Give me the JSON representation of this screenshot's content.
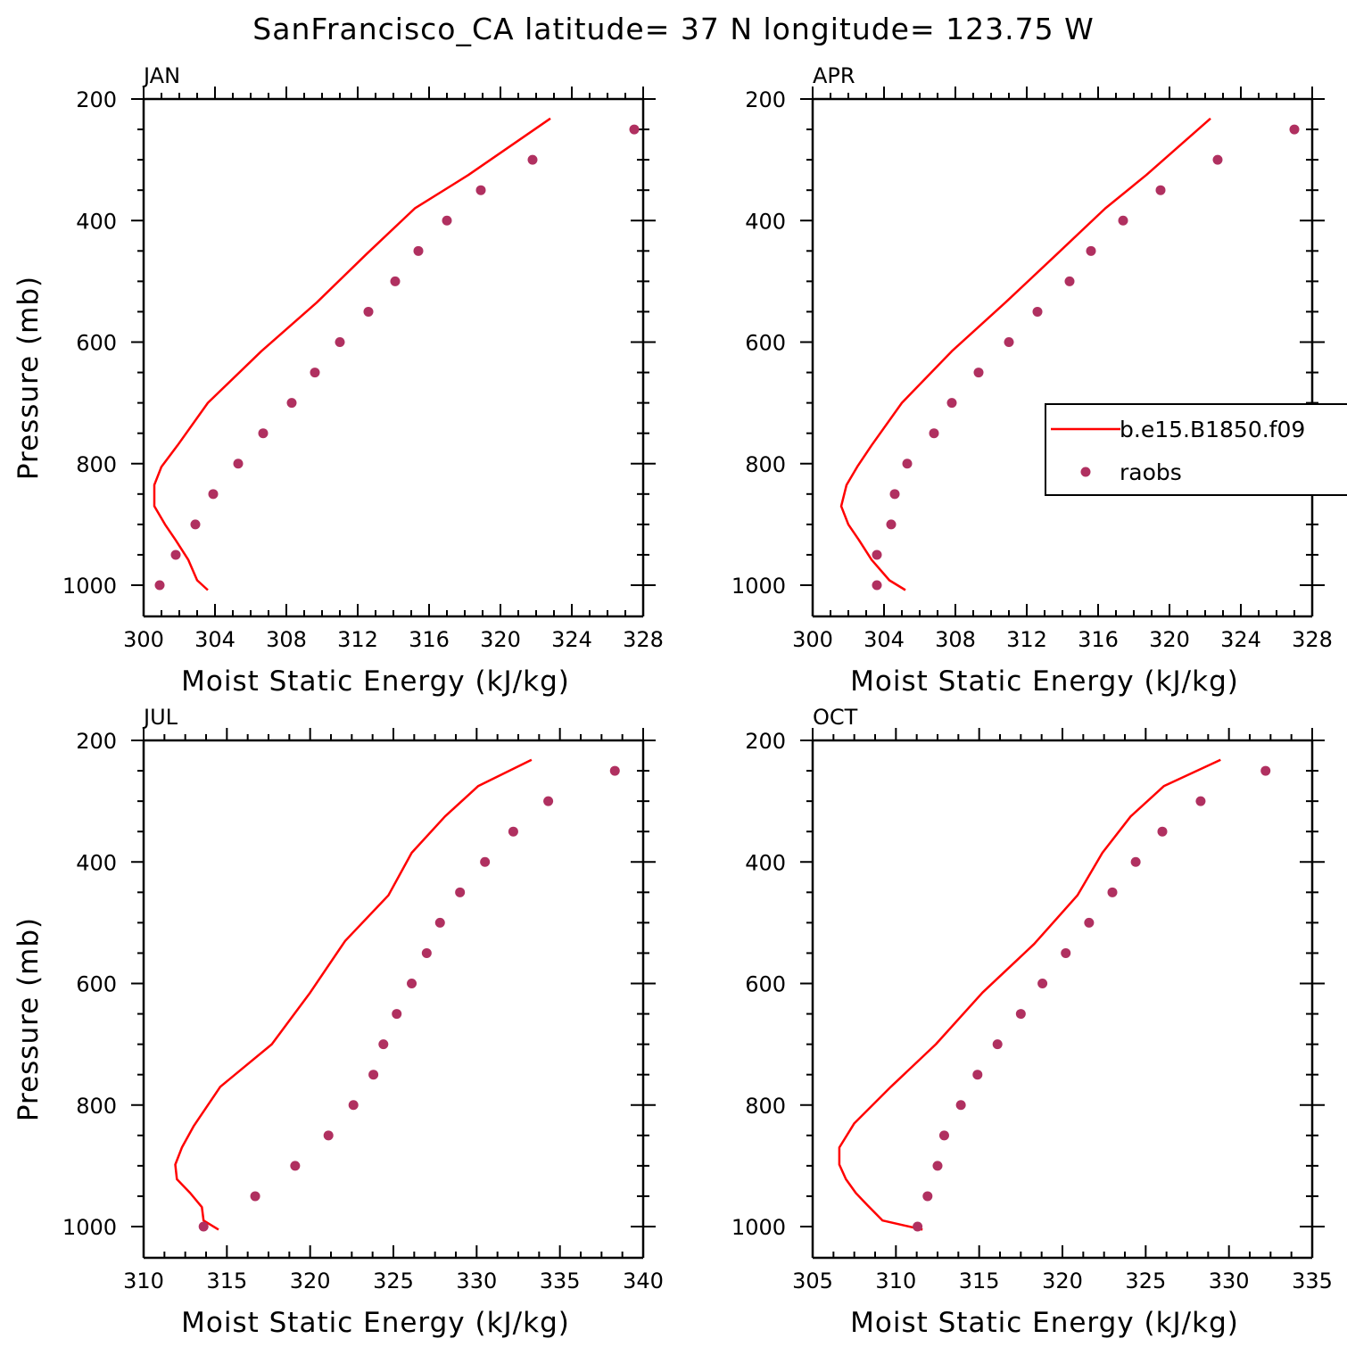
{
  "figure": {
    "title": "SanFrancisco_CA  latitude= 37 N longitude= 123.75 W"
  },
  "colors": {
    "model_line": "#ff0000",
    "raobs_marker": "#b03060",
    "axis": "#000000",
    "background": "#ffffff"
  },
  "legend": {
    "entries": [
      {
        "label": "b.e15.B1850.f09",
        "type": "line"
      },
      {
        "label": "raobs",
        "type": "marker"
      }
    ],
    "panel": "APR",
    "placement": "right, clipped at figure edge"
  },
  "chart_data": [
    {
      "type": "line",
      "panel_label": "JAN",
      "xlabel": "Moist Static Energy (kJ/kg)",
      "ylabel": "Pressure (mb)",
      "xlim": [
        300,
        328
      ],
      "ylim": [
        1000,
        200
      ],
      "y_reversed": true,
      "xticks": [
        300,
        304,
        308,
        312,
        316,
        320,
        324,
        328
      ],
      "xtick_labels": [
        "300",
        "304",
        "308",
        "312",
        "316",
        "320",
        "324",
        "328"
      ],
      "yticks": [
        200,
        400,
        600,
        800,
        1000
      ],
      "ytick_labels": [
        "200",
        "400",
        "600",
        "800",
        "1000"
      ],
      "grid": false,
      "series": [
        {
          "name": "b.e15.B1850.f09",
          "kind": "line",
          "x": [
            303.6,
            303.0,
            302.5,
            301.8,
            301.2,
            300.6,
            300.6,
            301.0,
            301.9,
            303.6,
            306.6,
            309.7,
            312.5,
            315.2,
            318.2,
            322.8
          ],
          "y": [
            1008,
            992,
            958,
            926,
            900,
            870,
            835,
            805,
            770,
            700,
            615,
            535,
            455,
            380,
            325,
            232
          ]
        },
        {
          "name": "raobs",
          "kind": "scatter",
          "x": [
            300.9,
            301.8,
            302.9,
            303.9,
            305.3,
            306.7,
            308.3,
            309.6,
            311.0,
            312.6,
            314.1,
            315.4,
            317.0,
            318.9,
            321.8,
            327.5
          ],
          "y": [
            1000,
            950,
            900,
            850,
            800,
            750,
            700,
            650,
            600,
            550,
            500,
            450,
            400,
            350,
            300,
            250
          ]
        }
      ]
    },
    {
      "type": "line",
      "panel_label": "APR",
      "xlabel": "Moist Static Energy (kJ/kg)",
      "ylabel": "",
      "xlim": [
        300,
        328
      ],
      "ylim": [
        1000,
        200
      ],
      "y_reversed": true,
      "xticks": [
        300,
        304,
        308,
        312,
        316,
        320,
        324,
        328
      ],
      "xtick_labels": [
        "300",
        "304",
        "308",
        "312",
        "316",
        "320",
        "324",
        "328"
      ],
      "yticks": [
        200,
        400,
        600,
        800,
        1000
      ],
      "ytick_labels": [
        "200",
        "400",
        "600",
        "800",
        "1000"
      ],
      "grid": false,
      "series": [
        {
          "name": "b.e15.B1850.f09",
          "kind": "line",
          "x": [
            305.2,
            304.3,
            303.3,
            302.6,
            302.0,
            301.6,
            301.9,
            302.5,
            303.3,
            305.0,
            307.8,
            310.8,
            313.7,
            316.4,
            318.7,
            322.3
          ],
          "y": [
            1008,
            992,
            958,
            926,
            900,
            870,
            835,
            805,
            770,
            700,
            615,
            535,
            455,
            380,
            325,
            232
          ]
        },
        {
          "name": "raobs",
          "kind": "scatter",
          "x": [
            303.6,
            303.6,
            304.4,
            304.6,
            305.3,
            306.8,
            307.8,
            309.3,
            311.0,
            312.6,
            314.4,
            315.6,
            317.4,
            319.5,
            322.7,
            327.0
          ],
          "y": [
            1000,
            950,
            900,
            850,
            800,
            750,
            700,
            650,
            600,
            550,
            500,
            450,
            400,
            350,
            300,
            250
          ]
        }
      ]
    },
    {
      "type": "line",
      "panel_label": "JUL",
      "xlabel": "Moist Static Energy (kJ/kg)",
      "ylabel": "Pressure (mb)",
      "xlim": [
        310,
        340
      ],
      "ylim": [
        1000,
        200
      ],
      "y_reversed": true,
      "xticks": [
        310,
        315,
        320,
        325,
        330,
        335,
        340
      ],
      "xtick_labels": [
        "310",
        "315",
        "320",
        "325",
        "330",
        "335",
        "340"
      ],
      "yticks": [
        200,
        400,
        600,
        800,
        1000
      ],
      "ytick_labels": [
        "200",
        "400",
        "600",
        "800",
        "1000"
      ],
      "grid": false,
      "series": [
        {
          "name": "b.e15.B1850.f09",
          "kind": "line",
          "x": [
            314.5,
            313.6,
            313.5,
            312.8,
            312.0,
            311.9,
            312.3,
            313.0,
            314.6,
            317.7,
            320.0,
            322.1,
            324.7,
            326.1,
            328.1,
            330.1,
            333.3
          ],
          "y": [
            1005,
            990,
            968,
            945,
            922,
            898,
            870,
            835,
            770,
            700,
            615,
            530,
            455,
            385,
            325,
            275,
            232
          ]
        },
        {
          "name": "raobs",
          "kind": "scatter",
          "x": [
            313.6,
            316.7,
            319.1,
            321.1,
            322.6,
            323.8,
            324.4,
            325.2,
            326.1,
            327.0,
            327.8,
            329.0,
            330.5,
            332.2,
            334.3,
            338.3
          ],
          "y": [
            1000,
            950,
            900,
            850,
            800,
            750,
            700,
            650,
            600,
            550,
            500,
            450,
            400,
            350,
            300,
            250
          ]
        }
      ]
    },
    {
      "type": "line",
      "panel_label": "OCT",
      "xlabel": "Moist Static Energy (kJ/kg)",
      "ylabel": "",
      "xlim": [
        305,
        335
      ],
      "ylim": [
        1000,
        200
      ],
      "y_reversed": true,
      "xticks": [
        305,
        310,
        315,
        320,
        325,
        330,
        335
      ],
      "xtick_labels": [
        "305",
        "310",
        "315",
        "320",
        "325",
        "330",
        "335"
      ],
      "yticks": [
        200,
        400,
        600,
        800,
        1000
      ],
      "ytick_labels": [
        "200",
        "400",
        "600",
        "800",
        "1000"
      ],
      "grid": false,
      "series": [
        {
          "name": "b.e15.B1850.f09",
          "kind": "line",
          "x": [
            311.6,
            309.2,
            308.3,
            307.6,
            307.0,
            306.6,
            306.6,
            307.5,
            309.7,
            312.4,
            315.2,
            318.3,
            320.9,
            322.4,
            324.1,
            326.1,
            329.5
          ],
          "y": [
            1005,
            990,
            965,
            945,
            922,
            898,
            870,
            830,
            770,
            700,
            615,
            535,
            455,
            385,
            325,
            275,
            232
          ]
        },
        {
          "name": "raobs",
          "kind": "scatter",
          "x": [
            311.3,
            311.9,
            312.5,
            312.9,
            313.9,
            314.9,
            316.1,
            317.5,
            318.8,
            320.2,
            321.6,
            323.0,
            324.4,
            326.0,
            328.3,
            332.2
          ],
          "y": [
            1000,
            950,
            900,
            850,
            800,
            750,
            700,
            650,
            600,
            550,
            500,
            450,
            400,
            350,
            300,
            250
          ]
        }
      ]
    }
  ]
}
